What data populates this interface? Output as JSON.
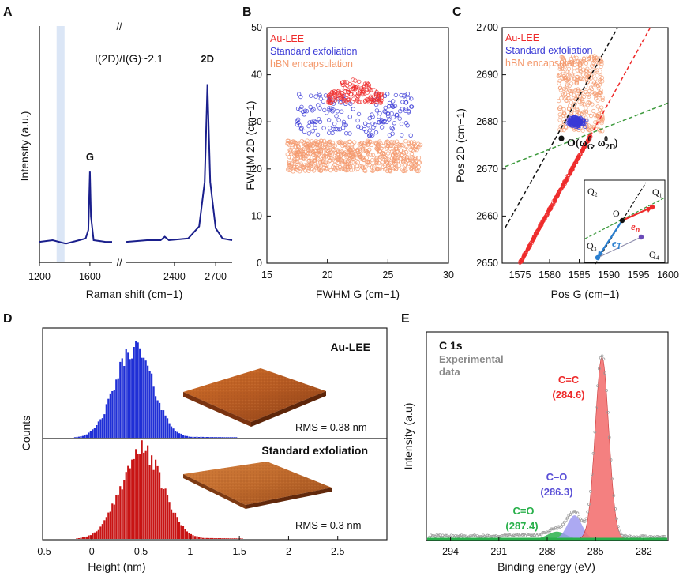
{
  "colors": {
    "navy": "#1a1f8c",
    "red": "#ee2b2b",
    "blue": "#3a3ad6",
    "orange": "#f49a6e",
    "black": "#111111",
    "green": "#3d9a3d",
    "purple": "#6a4ab8",
    "gray": "#8a8a8a",
    "hist_blue": "#1f2fd6",
    "hist_red": "#c81414",
    "fit_red": "#f36b6b",
    "fit_blue": "#9e9af0",
    "fit_green": "#28b04a",
    "band": "#dbe6f6"
  },
  "chart_data": [
    {
      "panel": "A",
      "type": "line",
      "xlabel": "Raman shift (cm−1)",
      "ylabel": "Intensity (a.u.)",
      "annotation": "I(2D)/I(G)~2.1",
      "axis_break": "//",
      "segments": [
        {
          "xlim": [
            1200,
            1750
          ],
          "xticks": [
            "1200",
            "1600"
          ],
          "points": [
            [
              1200,
              0.05
            ],
            [
              1300,
              0.06
            ],
            [
              1400,
              0.04
            ],
            [
              1500,
              0.06
            ],
            [
              1550,
              0.07
            ],
            [
              1570,
              0.12
            ],
            [
              1582,
              0.46
            ],
            [
              1590,
              0.2
            ],
            [
              1610,
              0.06
            ],
            [
              1700,
              0.05
            ],
            [
              1750,
              0.05
            ]
          ]
        },
        {
          "xlim": [
            2050,
            2820
          ],
          "xticks": [
            "2400",
            "2700"
          ],
          "points": [
            [
              2050,
              0.05
            ],
            [
              2200,
              0.06
            ],
            [
              2300,
              0.06
            ],
            [
              2330,
              0.08
            ],
            [
              2360,
              0.06
            ],
            [
              2500,
              0.07
            ],
            [
              2580,
              0.14
            ],
            [
              2620,
              0.4
            ],
            [
              2640,
              0.97
            ],
            [
              2660,
              0.4
            ],
            [
              2700,
              0.13
            ],
            [
              2750,
              0.07
            ],
            [
              2820,
              0.06
            ]
          ]
        }
      ],
      "peak_labels": [
        {
          "label": "G",
          "x": 1582
        },
        {
          "label": "2D",
          "x": 2640
        }
      ],
      "shaded_band_x": [
        1330,
        1390
      ]
    },
    {
      "panel": "B",
      "type": "scatter",
      "xlabel": "FWHM G (cm−1)",
      "ylabel": "FWHM 2D (cm−1)",
      "xlim": [
        15,
        30
      ],
      "ylim": [
        0,
        50
      ],
      "xticks": [
        "15",
        "20",
        "25",
        "30"
      ],
      "yticks": [
        "0",
        "10",
        "20",
        "30",
        "40",
        "50"
      ],
      "legend": [
        "Au-LEE",
        "Standard exfoliation",
        "hBN encapsulation"
      ],
      "series": [
        {
          "name": "Au-LEE",
          "x_range": [
            20,
            24.5
          ],
          "y_range": [
            33.5,
            40
          ],
          "count": 140
        },
        {
          "name": "Standard exfoliation",
          "x_range": [
            17.5,
            27
          ],
          "y_range": [
            27,
            36
          ],
          "count": 170
        },
        {
          "name": "hBN encapsulation",
          "x_range": [
            16.7,
            27.7
          ],
          "y_range": [
            19.5,
            26
          ],
          "count": 620
        }
      ]
    },
    {
      "panel": "C",
      "type": "scatter",
      "xlabel": "Pos G (cm−1)",
      "ylabel": "Pos 2D (cm−1)",
      "xlim": [
        1572,
        1600
      ],
      "ylim": [
        2650,
        2700
      ],
      "xticks": [
        "1575",
        "1580",
        "1585",
        "1590",
        "1595",
        "1600"
      ],
      "yticks": [
        "2650",
        "2660",
        "2670",
        "2680",
        "2690",
        "2700"
      ],
      "legend": [
        "Au-LEE",
        "Standard exfoliation",
        "hBN encapsulation"
      ],
      "origin_label": "O(ωG0, ω2D0)",
      "origin_point": [
        1582,
        2676.5
      ],
      "lines": [
        {
          "name": "strain",
          "color": "black",
          "from": [
            1572.5,
            2657.5
          ],
          "to": [
            1591.5,
            2700
          ]
        },
        {
          "name": "doping",
          "color": "red",
          "from": [
            1575,
            2650
          ],
          "to": [
            1597,
            2700
          ]
        },
        {
          "name": "green",
          "color": "green",
          "from": [
            1572.5,
            2670.5
          ],
          "to": [
            1600,
            2684
          ]
        }
      ],
      "series": [
        {
          "name": "Au-LEE",
          "description": "linear band",
          "x_range": [
            1574,
            1589
          ],
          "y_range": [
            2650,
            2677
          ],
          "count": 420
        },
        {
          "name": "Standard exfoliation",
          "x_range": [
            1581,
            1588
          ],
          "y_range": [
            2677,
            2684
          ],
          "count": 230
        },
        {
          "name": "hBN encapsulation",
          "x_range": [
            1581.5,
            1589
          ],
          "y_range": [
            2678,
            2694
          ],
          "count": 330
        }
      ],
      "inset": {
        "quadrants": [
          "Q₁",
          "Q₂",
          "Q₃",
          "Q₄"
        ],
        "origin": "O",
        "vector_n": "e",
        "vector_n_sub": "n",
        "vector_t": "e",
        "vector_t_sub": "T"
      }
    },
    {
      "panel": "D",
      "type": "bar",
      "xlabel": "Height (nm)",
      "ylabel": "Counts",
      "xlim": [
        -0.5,
        3.0
      ],
      "xticks": [
        "-0.5",
        "0",
        "0.5",
        "1",
        "1.5",
        "2",
        "2.5"
      ],
      "series": [
        {
          "name": "Au-LEE",
          "mean": 0.42,
          "sd": 0.19,
          "rms": "RMS = 0.38 nm"
        },
        {
          "name": "Standard exfoliation",
          "mean": 0.5,
          "sd": 0.21,
          "rms": "RMS = 0.3 nm"
        }
      ]
    },
    {
      "panel": "E",
      "type": "area",
      "xlabel": "Binding energy (eV)",
      "ylabel": "Intensity (a.u)",
      "xlim": [
        295.5,
        280.5
      ],
      "xticks": [
        "294",
        "291",
        "288",
        "285",
        "282"
      ],
      "title": "C 1s",
      "legend": "Experimental data",
      "peaks": [
        {
          "name": "C=C",
          "position": "(284.6)",
          "center": 284.6,
          "height": 1.0,
          "width": 0.42
        },
        {
          "name": "C–O",
          "position": "(286.3)",
          "center": 286.3,
          "height": 0.13,
          "width": 0.45
        },
        {
          "name": "C=O",
          "position": "(287.4)",
          "center": 287.4,
          "height": 0.04,
          "width": 0.55
        }
      ]
    }
  ],
  "panel_letters": [
    "A",
    "B",
    "C",
    "D",
    "E"
  ]
}
